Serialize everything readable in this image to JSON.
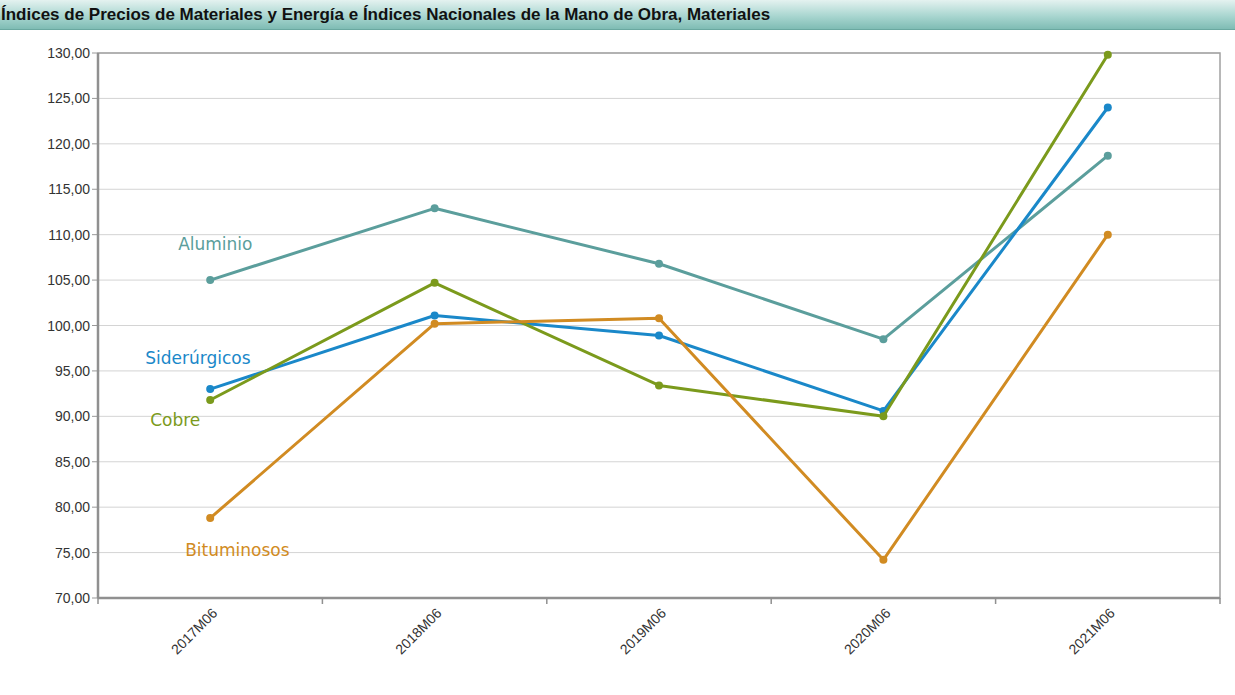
{
  "chart_data": {
    "type": "line",
    "title": "Índices de Precios de Materiales y Energía e Índices Nacionales de la Mano de Obra, Materiales",
    "categories": [
      "2017M06",
      "2018M06",
      "2019M06",
      "2020M06",
      "2021M06"
    ],
    "series": [
      {
        "name": "Aluminio",
        "color": "#5b9e9c",
        "values": [
          105.0,
          112.9,
          106.8,
          98.5,
          118.7
        ],
        "marker": "circle"
      },
      {
        "name": "Siderúrgicos",
        "color": "#1a88c9",
        "values": [
          93.0,
          101.1,
          98.9,
          90.6,
          124.0
        ],
        "marker": "circle"
      },
      {
        "name": "Cobre",
        "color": "#7b9a1c",
        "values": [
          91.8,
          104.7,
          93.4,
          90.0,
          129.8
        ],
        "marker": "circle"
      },
      {
        "name": "Bituminosos",
        "color": "#d18b22",
        "values": [
          78.8,
          100.2,
          100.8,
          74.2,
          110.0
        ],
        "marker": "circle"
      }
    ],
    "ylim": [
      70,
      130
    ],
    "yticks": [
      {
        "value": 70,
        "label": "70,00"
      },
      {
        "value": 75,
        "label": "75,00"
      },
      {
        "value": 80,
        "label": "80,00"
      },
      {
        "value": 85,
        "label": "85,00"
      },
      {
        "value": 90,
        "label": "90,00"
      },
      {
        "value": 95,
        "label": "95,00"
      },
      {
        "value": 100,
        "label": "100,00"
      },
      {
        "value": 105,
        "label": "105,00"
      },
      {
        "value": 110,
        "label": "110,00"
      },
      {
        "value": 115,
        "label": "115,00"
      },
      {
        "value": 120,
        "label": "120,00"
      },
      {
        "value": 125,
        "label": "125,00"
      },
      {
        "value": 130,
        "label": "130,00"
      }
    ],
    "grid": true
  }
}
